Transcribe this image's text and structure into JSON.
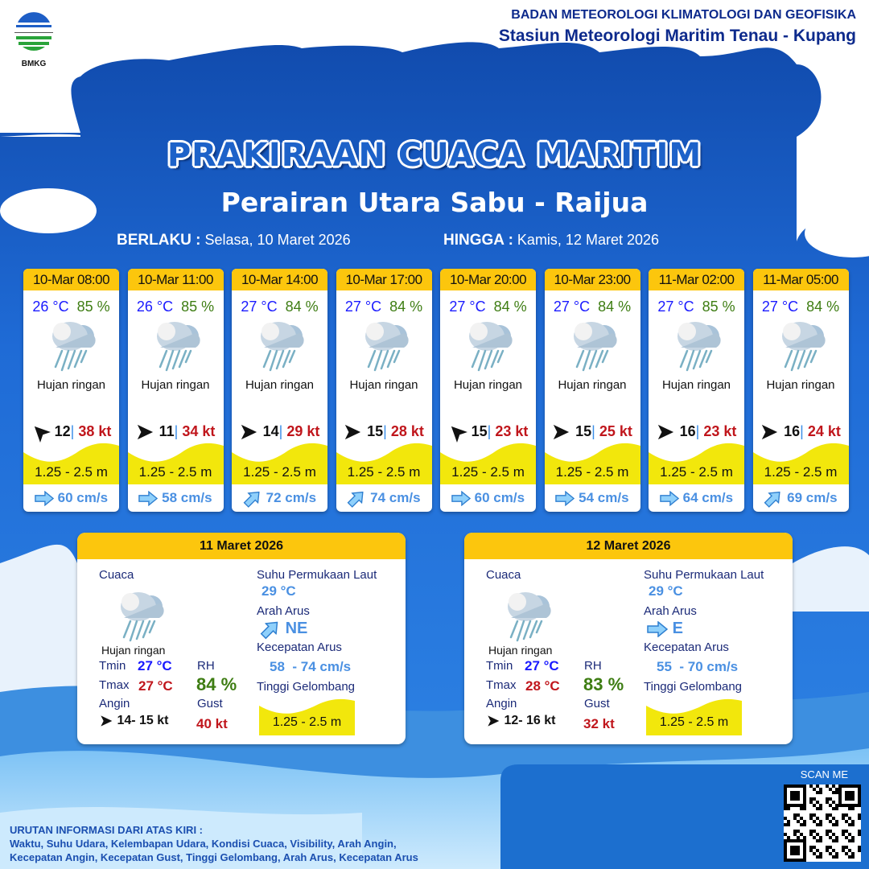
{
  "header": {
    "agency": "BADAN METEOROLOGI KLIMATOLOGI DAN GEOFISIKA",
    "station": "Stasiun Meteorologi Maritim Tenau - Kupang",
    "logo_text": "BMKG"
  },
  "title": "PRAKIRAAN CUACA MARITIM",
  "area": "Perairan Utara Sabu - Raijua",
  "validity": {
    "from_label": "BERLAKU :",
    "from": "Selasa, 10 Maret 2026",
    "to_label": "HINGGA :",
    "to": "Kamis, 12 Maret 2026"
  },
  "colors": {
    "accent": "#fcc60d",
    "temp": "#1a1aff",
    "rh": "#3e7d13",
    "gust": "#c0161c",
    "current": "#4a90e2",
    "wave": "#f2e70c",
    "background": "#1d62c9"
  },
  "forecasts": [
    {
      "time": "10-Mar 08:00",
      "temp": "26 °C",
      "rh": "85 %",
      "icon": "light-rain-icon",
      "weather": "Hujan ringan",
      "wind_dir": "NW",
      "wind": "12",
      "gust": "38 kt",
      "wave": "1.25 - 2.5 m",
      "current_dir": "E",
      "current": "60 cm/s"
    },
    {
      "time": "10-Mar 11:00",
      "temp": "26 °C",
      "rh": "85 %",
      "icon": "light-rain-icon",
      "weather": "Hujan ringan",
      "wind_dir": "E",
      "wind": "11",
      "gust": "34 kt",
      "wave": "1.25 - 2.5 m",
      "current_dir": "E",
      "current": "58 cm/s"
    },
    {
      "time": "10-Mar 14:00",
      "temp": "27 °C",
      "rh": "84 %",
      "icon": "light-rain-icon",
      "weather": "Hujan ringan",
      "wind_dir": "E",
      "wind": "14",
      "gust": "29 kt",
      "wave": "1.25 - 2.5 m",
      "current_dir": "NE",
      "current": "72 cm/s"
    },
    {
      "time": "10-Mar 17:00",
      "temp": "27 °C",
      "rh": "84 %",
      "icon": "light-rain-icon",
      "weather": "Hujan ringan",
      "wind_dir": "E",
      "wind": "15",
      "gust": "28 kt",
      "wave": "1.25 - 2.5 m",
      "current_dir": "NE",
      "current": "74 cm/s"
    },
    {
      "time": "10-Mar 20:00",
      "temp": "27 °C",
      "rh": "84 %",
      "icon": "light-rain-icon",
      "weather": "Hujan ringan",
      "wind_dir": "NW",
      "wind": "15",
      "gust": "23 kt",
      "wave": "1.25 - 2.5 m",
      "current_dir": "E",
      "current": "60 cm/s"
    },
    {
      "time": "10-Mar 23:00",
      "temp": "27 °C",
      "rh": "84 %",
      "icon": "light-rain-icon",
      "weather": "Hujan ringan",
      "wind_dir": "E",
      "wind": "15",
      "gust": "25 kt",
      "wave": "1.25 - 2.5 m",
      "current_dir": "E",
      "current": "54 cm/s"
    },
    {
      "time": "11-Mar 02:00",
      "temp": "27 °C",
      "rh": "85 %",
      "icon": "light-rain-icon",
      "weather": "Hujan ringan",
      "wind_dir": "E",
      "wind": "16",
      "gust": "23 kt",
      "wave": "1.25 - 2.5 m",
      "current_dir": "E",
      "current": "64 cm/s"
    },
    {
      "time": "11-Mar 05:00",
      "temp": "27 °C",
      "rh": "84 %",
      "icon": "light-rain-icon",
      "weather": "Hujan ringan",
      "wind_dir": "E",
      "wind": "16",
      "gust": "24 kt",
      "wave": "1.25 - 2.5 m",
      "current_dir": "NE",
      "current": "69 cm/s"
    }
  ],
  "labels": {
    "weather": "Cuaca",
    "tmin": "Tmin",
    "tmax": "Tmax",
    "rh": "RH",
    "wind": "Angin",
    "gust": "Gust",
    "sst": "Suhu Permukaan Laut",
    "current_dir": "Arah Arus",
    "current_speed": "Kecepatan Arus",
    "wave": "Tinggi Gelombang"
  },
  "daily": [
    {
      "date": "11 Maret 2026",
      "weather": "Hujan ringan",
      "tmin": "27 °C",
      "tmax": "27 °C",
      "rh": "84 %",
      "wind_dir": "E",
      "wind": "14- 15 kt",
      "gust": "40 kt",
      "sst": "29 °C",
      "current_dir": "NE",
      "current_speed": "58  - 74 cm/s",
      "wave": "1.25 - 2.5 m"
    },
    {
      "date": "12 Maret 2026",
      "weather": "Hujan ringan",
      "tmin": "27 °C",
      "tmax": "28 °C",
      "rh": "83 %",
      "wind_dir": "E",
      "wind": "12- 16 kt",
      "gust": "32 kt",
      "sst": "29 °C",
      "current_dir": "E",
      "current_speed": "55  - 70 cm/s",
      "wave": "1.25 - 2.5 m"
    }
  ],
  "qr": {
    "label": "SCAN ME"
  },
  "footer": {
    "title": "URUTAN INFORMASI DARI ATAS KIRI :",
    "line1": "Waktu, Suhu Udara, Kelembapan Udara, Kondisi Cuaca, Visibility, Arah Angin,",
    "line2": "Kecepatan Angin, Kecepatan Gust, Tinggi Gelombang, Arah Arus, Kecepatan Arus"
  }
}
